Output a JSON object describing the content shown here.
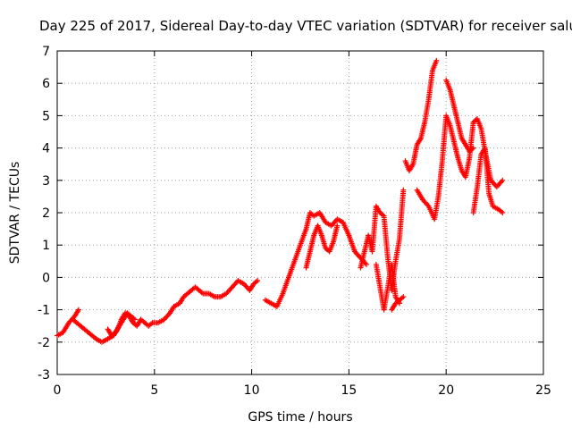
{
  "chart_data": {
    "type": "scatter",
    "title": "Day 225 of 2017, Sidereal Day-to-day VTEC variation (SDTVAR) for receiver salu",
    "xlabel": "GPS time / hours",
    "ylabel": "SDTVAR / TECUs",
    "xlim": [
      0,
      25
    ],
    "ylim": [
      -3,
      7
    ],
    "x_ticks": [
      "0",
      "5",
      "10",
      "15",
      "20",
      "25"
    ],
    "y_ticks": [
      "-3",
      "-2",
      "-1",
      "0",
      "1",
      "2",
      "3",
      "4",
      "5",
      "6",
      "7"
    ],
    "grid": true,
    "legend": "none",
    "marker": "plus",
    "color": "#ff0000",
    "series": [
      {
        "x": [
          0.0,
          0.3,
          0.6,
          0.9,
          1.1
        ],
        "y": [
          -1.8,
          -1.7,
          -1.4,
          -1.2,
          -1.0
        ]
      },
      {
        "x": [
          0.8,
          1.2,
          1.6,
          2.0,
          2.3,
          2.6,
          2.9,
          3.1,
          3.3,
          3.5,
          3.7,
          3.9,
          4.1,
          4.3,
          4.5,
          4.7,
          4.9,
          5.2,
          5.5,
          5.8,
          6.0,
          6.3,
          6.5,
          6.7,
          6.9,
          7.1,
          7.3,
          7.5,
          7.8,
          8.1,
          8.4,
          8.7,
          9.0,
          9.3,
          9.6,
          9.9,
          10.1,
          10.3
        ],
        "y": [
          -1.3,
          -1.5,
          -1.7,
          -1.9,
          -2.0,
          -1.9,
          -1.8,
          -1.6,
          -1.3,
          -1.1,
          -1.2,
          -1.4,
          -1.5,
          -1.3,
          -1.4,
          -1.5,
          -1.4,
          -1.4,
          -1.3,
          -1.1,
          -0.9,
          -0.8,
          -0.6,
          -0.5,
          -0.4,
          -0.3,
          -0.4,
          -0.5,
          -0.5,
          -0.6,
          -0.6,
          -0.5,
          -0.3,
          -0.1,
          -0.2,
          -0.4,
          -0.2,
          -0.1
        ]
      },
      {
        "x": [
          2.6,
          2.8,
          3.0,
          3.2,
          3.4,
          3.6,
          3.8,
          4.0
        ],
        "y": [
          -1.6,
          -1.8,
          -1.7,
          -1.5,
          -1.3,
          -1.1,
          -1.2,
          -1.3
        ]
      },
      {
        "x": [
          10.7,
          11.0,
          11.3,
          11.6,
          11.9,
          12.2,
          12.5,
          12.8,
          13.0,
          13.2,
          13.5,
          13.8,
          14.1,
          14.4,
          14.7,
          15.0,
          15.3,
          15.6,
          15.9
        ],
        "y": [
          -0.7,
          -0.8,
          -0.9,
          -0.5,
          0.0,
          0.5,
          1.0,
          1.5,
          2.0,
          1.9,
          2.0,
          1.7,
          1.6,
          1.8,
          1.7,
          1.3,
          0.8,
          0.6,
          0.4
        ]
      },
      {
        "x": [
          12.8,
          13.0,
          13.2,
          13.4,
          13.6,
          13.8,
          14.0,
          14.2,
          14.4
        ],
        "y": [
          0.3,
          0.8,
          1.3,
          1.6,
          1.3,
          0.9,
          0.8,
          1.1,
          1.6
        ]
      },
      {
        "x": [
          15.6,
          15.8,
          16.0,
          16.2,
          16.4,
          16.6,
          16.8,
          17.0,
          17.2,
          17.4,
          17.6,
          17.8
        ],
        "y": [
          0.3,
          0.8,
          1.3,
          0.8,
          2.2,
          2.0,
          1.9,
          0.6,
          -0.4,
          0.5,
          1.2,
          2.7
        ]
      },
      {
        "x": [
          16.4,
          16.6,
          16.8,
          17.0,
          17.2,
          17.4,
          17.6
        ],
        "y": [
          0.4,
          -0.3,
          -1.0,
          -0.3,
          0.4,
          -0.6,
          -0.8
        ]
      },
      {
        "x": [
          17.2,
          17.4,
          17.6,
          17.8
        ],
        "y": [
          -1.0,
          -0.8,
          -0.7,
          -0.6
        ]
      },
      {
        "x": [
          17.9,
          18.1,
          18.3,
          18.5,
          18.7,
          18.9,
          19.1,
          19.3,
          19.5
        ],
        "y": [
          3.6,
          3.3,
          3.5,
          4.1,
          4.3,
          4.8,
          5.5,
          6.4,
          6.7
        ]
      },
      {
        "x": [
          18.5,
          18.8,
          19.1,
          19.4,
          19.6,
          19.8,
          20.0,
          20.2,
          20.4,
          20.6,
          20.8,
          21.0,
          21.2,
          21.4,
          21.6,
          21.8,
          22.0,
          22.3,
          22.6,
          22.9
        ],
        "y": [
          2.7,
          2.4,
          2.2,
          1.8,
          2.5,
          3.6,
          5.0,
          4.7,
          4.2,
          3.7,
          3.3,
          3.1,
          3.7,
          4.8,
          4.9,
          4.6,
          3.9,
          3.0,
          2.8,
          3.0
        ]
      },
      {
        "x": [
          20.0,
          20.2,
          20.4,
          20.6,
          20.8,
          21.0,
          21.2,
          21.4
        ],
        "y": [
          6.1,
          5.8,
          5.3,
          4.8,
          4.3,
          4.1,
          3.9,
          4.0
        ]
      },
      {
        "x": [
          21.4,
          21.6,
          21.8,
          22.0,
          22.2,
          22.4,
          22.7,
          22.9
        ],
        "y": [
          2.0,
          2.8,
          3.8,
          4.0,
          2.6,
          2.2,
          2.1,
          2.0
        ]
      }
    ]
  }
}
